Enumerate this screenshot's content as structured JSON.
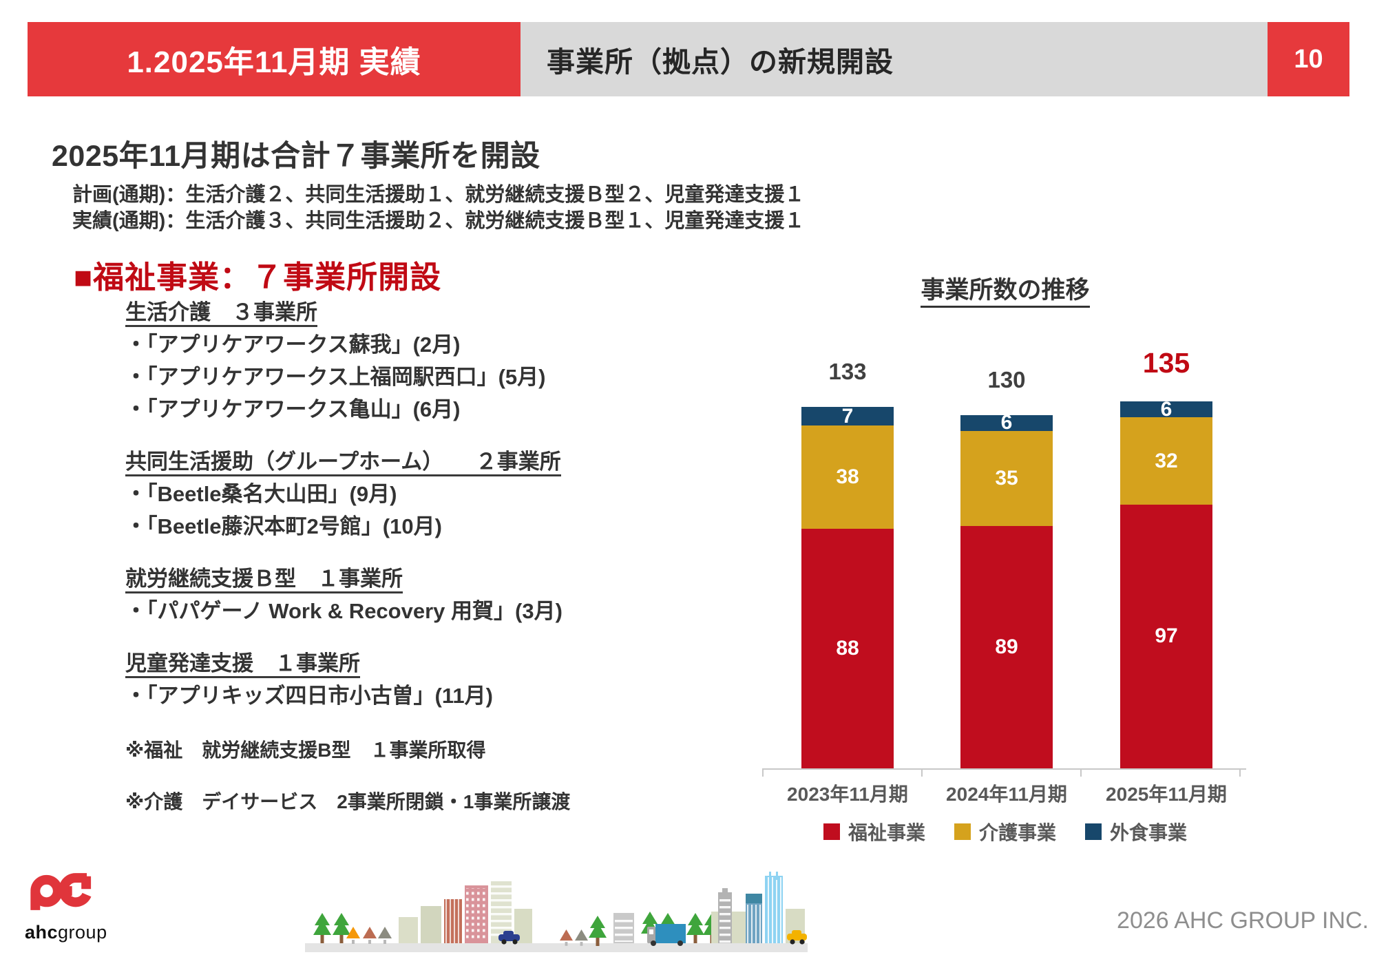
{
  "page": {
    "number": "10",
    "copyright": "2026 AHC GROUP INC."
  },
  "header": {
    "section_label": "1.2025年11月期 実績",
    "title": "事業所（拠点）の新規開設"
  },
  "lead": {
    "title": "2025年11月期は合計７事業所を開設",
    "plan_line": "計画(通期)：生活介護２、共同生活援助１、就労継続支援Ｂ型２、児童発達支援１",
    "actual_line": "実績(通期)：生活介護３、共同生活援助２、就労継続支援Ｂ型１、児童発達支援１"
  },
  "welfare": {
    "heading": "■福祉事業：７事業所開設",
    "sections": [
      {
        "title": "生活介護　３事業所",
        "items": [
          "・「アプリケアワークス蘇我」(2月)",
          "・「アプリケアワークス上福岡駅西口」(5月)",
          "・「アプリケアワークス亀山」(6月)"
        ]
      },
      {
        "title": "共同生活援助（グループホーム）　　２事業所",
        "items": [
          "・「Beetle桑名大山田」(9月)",
          "・「Beetle藤沢本町2号館」(10月)"
        ]
      },
      {
        "title": "就労継続支援Ｂ型　１事業所",
        "items": [
          "・「パパゲーノ Work & Recovery 用賀」(3月)"
        ]
      },
      {
        "title": "児童発達支援　１事業所",
        "items": [
          "・「アプリキッズ四日市小古曽」(11月)"
        ]
      }
    ],
    "notes": [
      "※福祉　就労継続支援B型　１事業所取得",
      "※介護　デイサービス　2事業所閉鎖・1事業所譲渡"
    ]
  },
  "chart_data": {
    "type": "bar",
    "stacked": true,
    "title": "事業所数の推移",
    "categories": [
      "2023年11月期",
      "2024年11月期",
      "2025年11月期"
    ],
    "series": [
      {
        "name": "福祉事業",
        "color": "#C00D1E",
        "values": [
          88,
          89,
          97
        ]
      },
      {
        "name": "介護事業",
        "color": "#D5A21D",
        "values": [
          38,
          35,
          32
        ]
      },
      {
        "name": "外食事業",
        "color": "#17476B",
        "values": [
          7,
          6,
          6
        ]
      }
    ],
    "totals": [
      133,
      130,
      135
    ],
    "highlight_total_index": 2,
    "legend_position": "bottom",
    "xlabel": "",
    "ylabel": "",
    "ylim": [
      0,
      140
    ],
    "grid": false
  },
  "colors": {
    "header_red": "#E6393C",
    "band_gray": "#D9D9D9",
    "accent_red": "#C00A14",
    "bar_red": "#C00D1E",
    "bar_gold": "#D5A21D",
    "bar_navy": "#17476B"
  },
  "logo": {
    "brand_bold": "ahc",
    "brand_rest": "group"
  }
}
